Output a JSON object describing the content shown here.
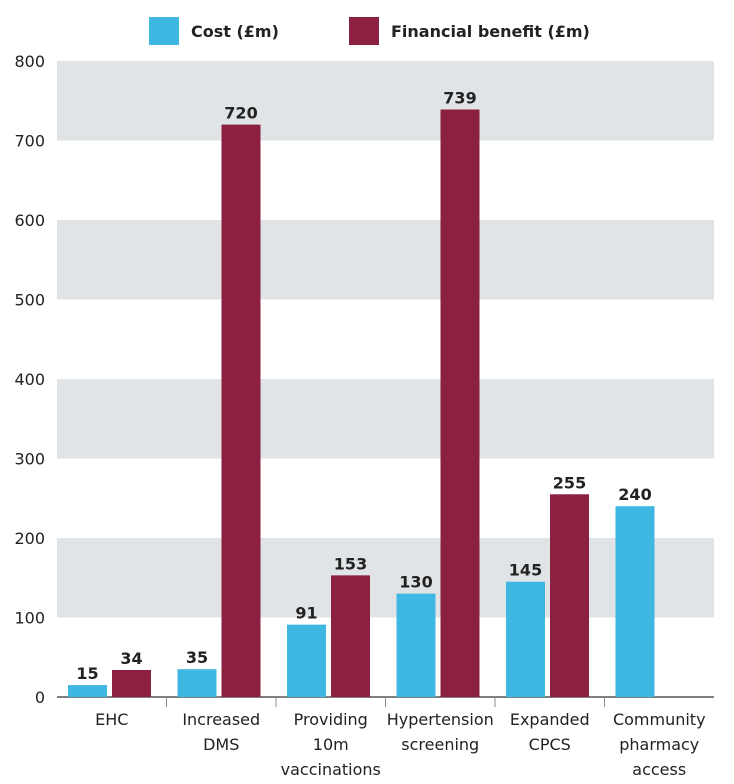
{
  "colors": {
    "cost": "#3eb7e3",
    "benefit": "#8c2040",
    "band": "#e1e4e6",
    "axis": "#555555"
  },
  "legend": {
    "cost_label": "Cost (£m)",
    "benefit_label": "Financial benefit (£m)"
  },
  "chart_data": {
    "type": "bar",
    "categories": [
      [
        "EHC"
      ],
      [
        "Increased",
        "DMS"
      ],
      [
        "Providing",
        "10m",
        "vaccinations"
      ],
      [
        "Hypertension",
        "screening"
      ],
      [
        "Expanded",
        "CPCS"
      ],
      [
        "Community",
        "pharmacy",
        "access"
      ]
    ],
    "series": [
      {
        "name": "Cost (£m)",
        "values": [
          15,
          35,
          91,
          130,
          145,
          240
        ]
      },
      {
        "name": "Financial benefit (£m)",
        "values": [
          34,
          720,
          153,
          739,
          255,
          null
        ]
      }
    ],
    "ylim": [
      0,
      800
    ],
    "yticks": [
      0,
      100,
      200,
      300,
      400,
      500,
      600,
      700,
      800
    ],
    "grid": "alternating horizontal bands",
    "legend_position": "top",
    "data_labels": true
  }
}
